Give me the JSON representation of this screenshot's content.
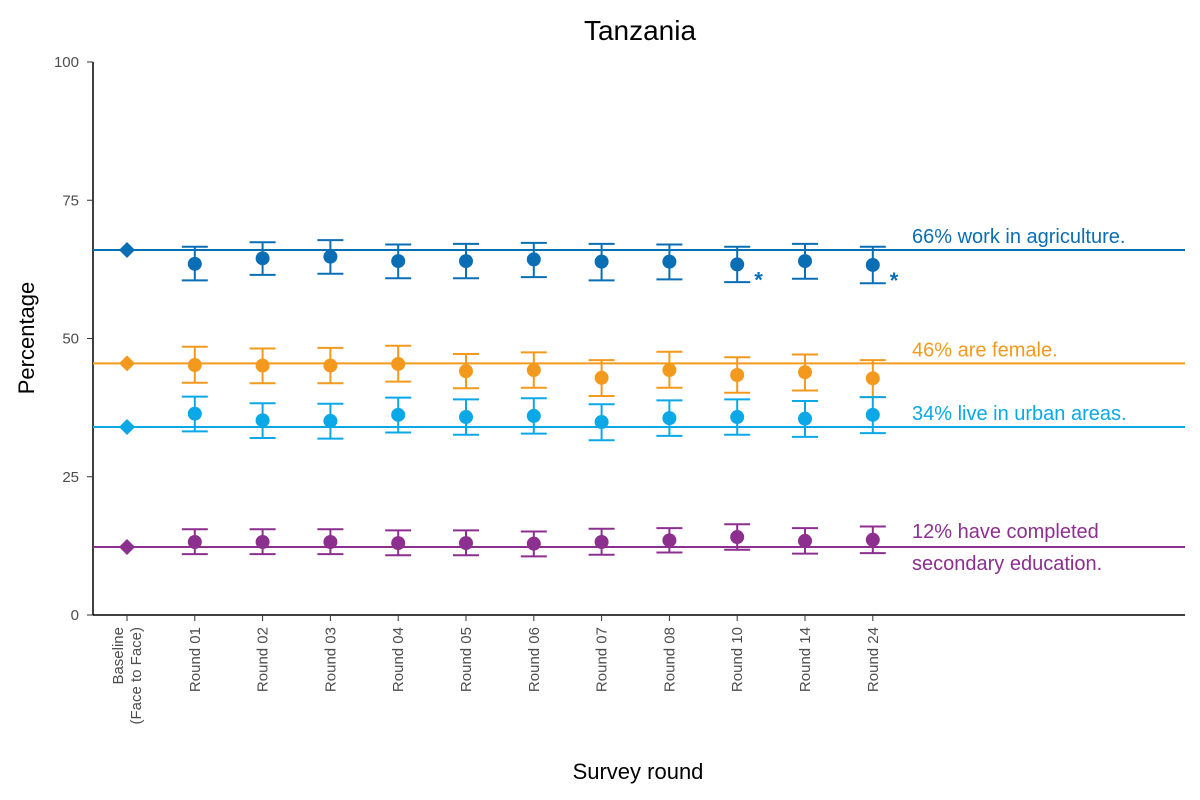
{
  "chart_data": {
    "type": "scatter",
    "title": "Tanzania",
    "xlabel": "Survey round",
    "ylabel": "Percentage",
    "ylim": [
      0,
      100
    ],
    "yticks": [
      "0",
      "25",
      "50",
      "75",
      "100"
    ],
    "categories": [
      [
        "Baseline",
        "(Face to Face)"
      ],
      [
        "Round 01"
      ],
      [
        "Round 02"
      ],
      [
        "Round 03"
      ],
      [
        "Round 04"
      ],
      [
        "Round 05"
      ],
      [
        "Round 06"
      ],
      [
        "Round 07"
      ],
      [
        "Round 08"
      ],
      [
        "Round 10"
      ],
      [
        "Round 14"
      ],
      [
        "Round 24"
      ]
    ],
    "grid": false,
    "series": [
      {
        "color": "#0a6eb4",
        "baseline": 66,
        "values": [
          66.0,
          63.5,
          64.5,
          64.8,
          64.0,
          64.0,
          64.3,
          63.9,
          63.9,
          63.4,
          64.0,
          63.3
        ],
        "lower": [
          null,
          60.5,
          61.5,
          61.7,
          60.9,
          60.9,
          61.1,
          60.5,
          60.7,
          60.2,
          60.8,
          60.0
        ],
        "upper": [
          null,
          66.6,
          67.4,
          67.8,
          67.0,
          67.1,
          67.3,
          67.1,
          67.0,
          66.6,
          67.1,
          66.6
        ],
        "annotation": [
          "66% work in agriculture."
        ],
        "significant_rounds": [
          "Round 10",
          "Round 24"
        ],
        "significance_mark": "*"
      },
      {
        "color": "#f39a1e",
        "baseline": 45.5,
        "values": [
          45.5,
          45.2,
          45.1,
          45.1,
          45.4,
          44.1,
          44.3,
          42.9,
          44.3,
          43.4,
          43.9,
          42.8
        ],
        "lower": [
          null,
          42.0,
          41.9,
          41.9,
          42.2,
          41.0,
          41.1,
          39.6,
          41.1,
          40.2,
          40.6,
          39.4
        ],
        "upper": [
          null,
          48.5,
          48.2,
          48.3,
          48.7,
          47.2,
          47.5,
          46.1,
          47.6,
          46.6,
          47.1,
          46.1
        ],
        "annotation": [
          "46% are female."
        ],
        "significant_rounds": [],
        "significance_mark": ""
      },
      {
        "color": "#0aa8e6",
        "baseline": 34,
        "values": [
          34.0,
          36.4,
          35.2,
          35.1,
          36.2,
          35.8,
          36.0,
          34.9,
          35.6,
          35.8,
          35.5,
          36.2
        ],
        "lower": [
          null,
          33.2,
          32.0,
          31.9,
          33.0,
          32.6,
          32.8,
          31.6,
          32.4,
          32.6,
          32.2,
          32.9
        ],
        "upper": [
          null,
          39.5,
          38.3,
          38.2,
          39.3,
          39.0,
          39.2,
          38.1,
          38.8,
          39.0,
          38.7,
          39.4
        ],
        "annotation": [
          "34% live in urban areas."
        ],
        "significant_rounds": [],
        "significance_mark": ""
      },
      {
        "color": "#8c2f8f",
        "baseline": 12.3,
        "values": [
          12.3,
          13.2,
          13.2,
          13.2,
          13.0,
          13.0,
          12.9,
          13.2,
          13.5,
          14.1,
          13.4,
          13.6
        ],
        "lower": [
          null,
          11.0,
          11.0,
          11.0,
          10.8,
          10.8,
          10.6,
          10.9,
          11.3,
          11.8,
          11.1,
          11.2
        ],
        "upper": [
          null,
          15.5,
          15.5,
          15.5,
          15.3,
          15.3,
          15.1,
          15.6,
          15.7,
          16.4,
          15.7,
          16.0
        ],
        "annotation": [
          "12% have completed",
          "secondary education."
        ],
        "significant_rounds": [],
        "significance_mark": ""
      }
    ]
  }
}
